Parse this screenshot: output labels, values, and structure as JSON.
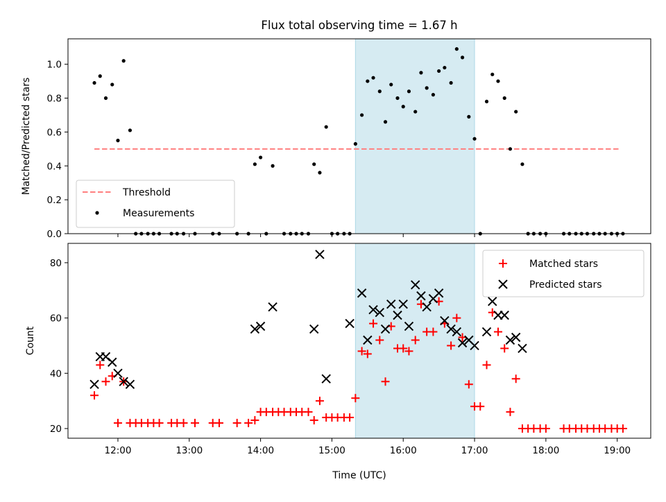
{
  "chart_data": [
    {
      "type": "scatter",
      "title": "Flux total observing time = 1.67 h",
      "xlabel": "",
      "ylabel": "Matched/Predicted stars",
      "xlim": [
        11.3,
        19.47
      ],
      "ylim": [
        0.0,
        1.15
      ],
      "yticks": [
        0.0,
        0.2,
        0.4,
        0.6,
        0.8,
        1.0
      ],
      "ytick_labels": [
        "0.0",
        "0.2",
        "0.4",
        "0.6",
        "0.8",
        "1.0"
      ],
      "xticks": [
        12,
        13,
        14,
        15,
        16,
        17,
        18,
        19
      ],
      "legend_position": "lower-left",
      "shaded_span": {
        "x0": 15.33,
        "x1": 17.0,
        "color": "#add8e6"
      },
      "threshold": {
        "name": "Threshold",
        "y": 0.5,
        "x0": 11.67,
        "x1": 19.05,
        "color": "#ff7f7f"
      },
      "series": [
        {
          "name": "Measurements",
          "color": "#000000",
          "marker": "dot",
          "points": [
            [
              11.67,
              0.89
            ],
            [
              11.75,
              0.93
            ],
            [
              11.83,
              0.8
            ],
            [
              11.92,
              0.88
            ],
            [
              12.0,
              0.55
            ],
            [
              12.08,
              1.02
            ],
            [
              12.17,
              0.61
            ],
            [
              12.25,
              0.0
            ],
            [
              12.33,
              0.0
            ],
            [
              12.42,
              0.0
            ],
            [
              12.5,
              0.0
            ],
            [
              12.58,
              0.0
            ],
            [
              12.75,
              0.0
            ],
            [
              12.83,
              0.0
            ],
            [
              12.92,
              0.0
            ],
            [
              13.08,
              0.0
            ],
            [
              13.33,
              0.0
            ],
            [
              13.42,
              0.0
            ],
            [
              13.67,
              0.0
            ],
            [
              13.83,
              0.0
            ],
            [
              13.92,
              0.41
            ],
            [
              14.0,
              0.45
            ],
            [
              14.08,
              0.0
            ],
            [
              14.17,
              0.4
            ],
            [
              14.33,
              0.0
            ],
            [
              14.42,
              0.0
            ],
            [
              14.5,
              0.0
            ],
            [
              14.58,
              0.0
            ],
            [
              14.67,
              0.0
            ],
            [
              14.75,
              0.41
            ],
            [
              14.83,
              0.36
            ],
            [
              14.92,
              0.63
            ],
            [
              15.0,
              0.0
            ],
            [
              15.08,
              0.0
            ],
            [
              15.17,
              0.0
            ],
            [
              15.25,
              0.0
            ],
            [
              15.33,
              0.53
            ],
            [
              15.42,
              0.7
            ],
            [
              15.5,
              0.9
            ],
            [
              15.58,
              0.92
            ],
            [
              15.67,
              0.84
            ],
            [
              15.75,
              0.66
            ],
            [
              15.83,
              0.88
            ],
            [
              15.92,
              0.8
            ],
            [
              16.0,
              0.75
            ],
            [
              16.08,
              0.84
            ],
            [
              16.17,
              0.72
            ],
            [
              16.25,
              0.95
            ],
            [
              16.33,
              0.86
            ],
            [
              16.42,
              0.82
            ],
            [
              16.5,
              0.96
            ],
            [
              16.58,
              0.98
            ],
            [
              16.67,
              0.89
            ],
            [
              16.75,
              1.09
            ],
            [
              16.83,
              1.04
            ],
            [
              16.92,
              0.69
            ],
            [
              17.0,
              0.56
            ],
            [
              17.08,
              0.0
            ],
            [
              17.17,
              0.78
            ],
            [
              17.25,
              0.94
            ],
            [
              17.33,
              0.9
            ],
            [
              17.42,
              0.8
            ],
            [
              17.5,
              0.5
            ],
            [
              17.58,
              0.72
            ],
            [
              17.67,
              0.41
            ],
            [
              17.75,
              0.0
            ],
            [
              17.83,
              0.0
            ],
            [
              17.92,
              0.0
            ],
            [
              18.0,
              0.0
            ],
            [
              18.25,
              0.0
            ],
            [
              18.33,
              0.0
            ],
            [
              18.42,
              0.0
            ],
            [
              18.5,
              0.0
            ],
            [
              18.58,
              0.0
            ],
            [
              18.67,
              0.0
            ],
            [
              18.75,
              0.0
            ],
            [
              18.83,
              0.0
            ],
            [
              18.92,
              0.0
            ],
            [
              19.0,
              0.0
            ],
            [
              19.08,
              0.0
            ]
          ]
        }
      ]
    },
    {
      "type": "scatter",
      "title": "",
      "xlabel": "Time (UTC)",
      "ylabel": "Count",
      "xlim": [
        11.3,
        19.47
      ],
      "ylim": [
        16.5,
        87.0
      ],
      "yticks": [
        20,
        40,
        60,
        80
      ],
      "ytick_labels": [
        "20",
        "40",
        "60",
        "80"
      ],
      "xticks": [
        12,
        13,
        14,
        15,
        16,
        17,
        18,
        19
      ],
      "xtick_labels": [
        "12:00",
        "13:00",
        "14:00",
        "15:00",
        "16:00",
        "17:00",
        "18:00",
        "19:00"
      ],
      "legend_position": "upper-right",
      "shaded_span": {
        "x0": 15.33,
        "x1": 17.0,
        "color": "#add8e6"
      },
      "series": [
        {
          "name": "Matched stars",
          "color": "#ff0000",
          "marker": "plus",
          "points": [
            [
              11.67,
              32
            ],
            [
              11.75,
              43
            ],
            [
              11.83,
              37
            ],
            [
              11.92,
              39
            ],
            [
              12.0,
              22
            ],
            [
              12.08,
              37
            ],
            [
              12.17,
              22
            ],
            [
              12.25,
              22
            ],
            [
              12.33,
              22
            ],
            [
              12.42,
              22
            ],
            [
              12.5,
              22
            ],
            [
              12.58,
              22
            ],
            [
              12.75,
              22
            ],
            [
              12.83,
              22
            ],
            [
              12.92,
              22
            ],
            [
              13.08,
              22
            ],
            [
              13.33,
              22
            ],
            [
              13.42,
              22
            ],
            [
              13.67,
              22
            ],
            [
              13.83,
              22
            ],
            [
              13.92,
              23
            ],
            [
              14.0,
              26
            ],
            [
              14.08,
              26
            ],
            [
              14.17,
              26
            ],
            [
              14.25,
              26
            ],
            [
              14.33,
              26
            ],
            [
              14.42,
              26
            ],
            [
              14.5,
              26
            ],
            [
              14.58,
              26
            ],
            [
              14.67,
              26
            ],
            [
              14.75,
              23
            ],
            [
              14.83,
              30
            ],
            [
              14.92,
              24
            ],
            [
              15.0,
              24
            ],
            [
              15.08,
              24
            ],
            [
              15.17,
              24
            ],
            [
              15.25,
              24
            ],
            [
              15.33,
              31
            ],
            [
              15.42,
              48
            ],
            [
              15.5,
              47
            ],
            [
              15.58,
              58
            ],
            [
              15.67,
              52
            ],
            [
              15.75,
              37
            ],
            [
              15.83,
              57
            ],
            [
              15.92,
              49
            ],
            [
              16.0,
              49
            ],
            [
              16.08,
              48
            ],
            [
              16.17,
              52
            ],
            [
              16.25,
              65
            ],
            [
              16.33,
              55
            ],
            [
              16.42,
              55
            ],
            [
              16.5,
              66
            ],
            [
              16.58,
              58
            ],
            [
              16.67,
              50
            ],
            [
              16.75,
              60
            ],
            [
              16.83,
              53
            ],
            [
              16.92,
              36
            ],
            [
              17.0,
              28
            ],
            [
              17.08,
              28
            ],
            [
              17.17,
              43
            ],
            [
              17.25,
              62
            ],
            [
              17.33,
              55
            ],
            [
              17.42,
              49
            ],
            [
              17.5,
              26
            ],
            [
              17.58,
              38
            ],
            [
              17.67,
              20
            ],
            [
              17.75,
              20
            ],
            [
              17.83,
              20
            ],
            [
              17.92,
              20
            ],
            [
              18.0,
              20
            ],
            [
              18.25,
              20
            ],
            [
              18.33,
              20
            ],
            [
              18.42,
              20
            ],
            [
              18.5,
              20
            ],
            [
              18.58,
              20
            ],
            [
              18.67,
              20
            ],
            [
              18.75,
              20
            ],
            [
              18.83,
              20
            ],
            [
              18.92,
              20
            ],
            [
              19.0,
              20
            ],
            [
              19.08,
              20
            ]
          ]
        },
        {
          "name": "Predicted stars",
          "color": "#000000",
          "marker": "x",
          "points": [
            [
              11.67,
              36
            ],
            [
              11.75,
              46
            ],
            [
              11.83,
              46
            ],
            [
              11.92,
              44
            ],
            [
              12.0,
              40
            ],
            [
              12.08,
              37
            ],
            [
              12.17,
              36
            ],
            [
              13.92,
              56
            ],
            [
              14.0,
              57
            ],
            [
              14.17,
              64
            ],
            [
              14.75,
              56
            ],
            [
              14.83,
              83
            ],
            [
              14.92,
              38
            ],
            [
              15.25,
              58
            ],
            [
              15.42,
              69
            ],
            [
              15.5,
              52
            ],
            [
              15.58,
              63
            ],
            [
              15.67,
              62
            ],
            [
              15.75,
              56
            ],
            [
              15.83,
              65
            ],
            [
              15.92,
              61
            ],
            [
              16.0,
              65
            ],
            [
              16.08,
              57
            ],
            [
              16.17,
              72
            ],
            [
              16.25,
              68
            ],
            [
              16.33,
              64
            ],
            [
              16.42,
              67
            ],
            [
              16.5,
              69
            ],
            [
              16.58,
              59
            ],
            [
              16.67,
              56
            ],
            [
              16.75,
              55
            ],
            [
              16.83,
              51
            ],
            [
              16.92,
              52
            ],
            [
              17.0,
              50
            ],
            [
              17.17,
              55
            ],
            [
              17.25,
              66
            ],
            [
              17.33,
              61
            ],
            [
              17.42,
              61
            ],
            [
              17.5,
              52
            ],
            [
              17.58,
              53
            ],
            [
              17.67,
              49
            ]
          ]
        }
      ]
    }
  ]
}
